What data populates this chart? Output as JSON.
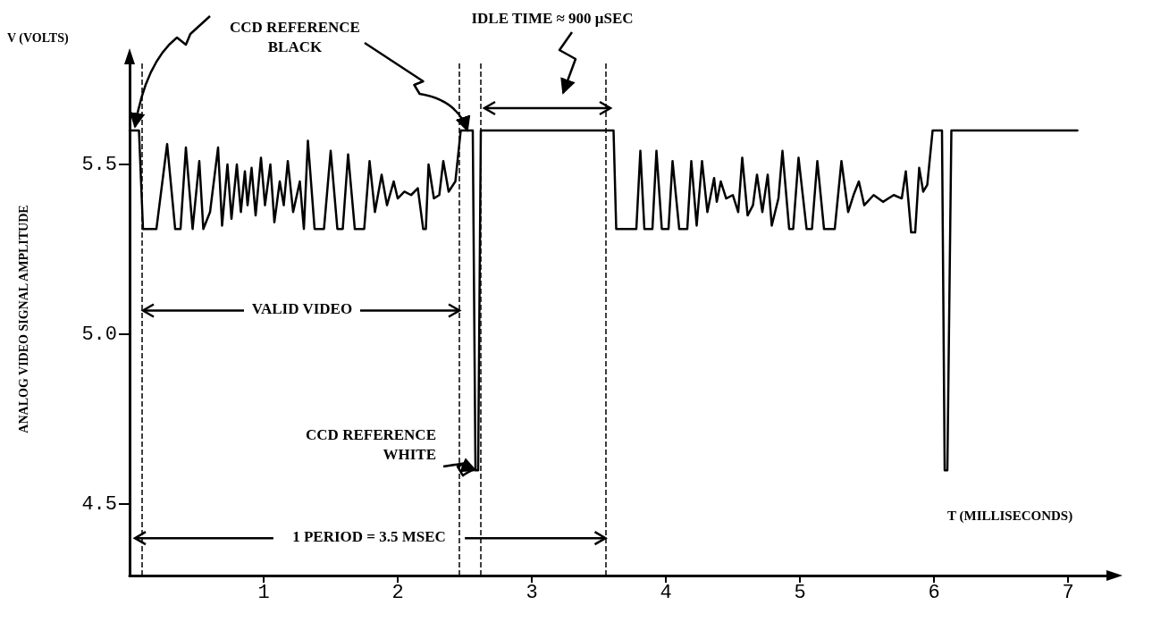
{
  "chart_data": {
    "type": "line",
    "xlabel": "T (MILLISECONDS)",
    "ylabel": "ANALOG VIDEO SIGNAL AMPLITUDE",
    "xlim": [
      0,
      7.3
    ],
    "xticks": [
      1,
      2,
      3,
      4,
      5,
      6,
      7
    ],
    "ylim": [
      4.29,
      5.8
    ],
    "yticks": [
      4.5,
      {
        "value": 5,
        "label": "5.0"
      },
      5.5
    ],
    "grid": false,
    "marker": "none",
    "line_style": "solid",
    "series": [
      {
        "color": "#000000",
        "x": [
          0,
          0.07,
          0.1,
          0.2,
          0.28,
          0.34,
          0.38,
          0.42,
          0.47,
          0.52,
          0.55,
          0.6,
          0.66,
          0.69,
          0.73,
          0.76,
          0.8,
          0.83,
          0.86,
          0.88,
          0.91,
          0.94,
          0.98,
          1.01,
          1.05,
          1.08,
          1.12,
          1.15,
          1.18,
          1.22,
          1.27,
          1.3,
          1.33,
          1.38,
          1.45,
          1.5,
          1.55,
          1.59,
          1.63,
          1.68,
          1.75,
          1.79,
          1.83,
          1.88,
          1.92,
          1.97,
          2.0,
          2.05,
          2.1,
          2.15,
          2.19,
          2.21,
          2.23,
          2.27,
          2.31,
          2.34,
          2.38,
          2.43,
          2.47,
          2.56,
          2.58,
          2.6,
          2.62,
          3.61,
          3.63,
          3.78,
          3.81,
          3.84,
          3.9,
          3.93,
          3.97,
          4.02,
          4.05,
          4.1,
          4.16,
          4.19,
          4.23,
          4.27,
          4.31,
          4.36,
          4.38,
          4.41,
          4.45,
          4.5,
          4.54,
          4.57,
          4.61,
          4.65,
          4.68,
          4.72,
          4.76,
          4.79,
          4.84,
          4.87,
          4.92,
          4.95,
          4.99,
          5.05,
          5.09,
          5.13,
          5.18,
          5.26,
          5.31,
          5.36,
          5.4,
          5.44,
          5.48,
          5.55,
          5.62,
          5.7,
          5.76,
          5.79,
          5.83,
          5.86,
          5.89,
          5.92,
          5.95,
          5.99,
          6.06,
          6.08,
          6.1,
          6.13,
          7.07
        ],
        "values": [
          5.6,
          5.6,
          5.31,
          5.31,
          5.56,
          5.31,
          5.31,
          5.55,
          5.31,
          5.51,
          5.31,
          5.36,
          5.55,
          5.32,
          5.5,
          5.34,
          5.5,
          5.36,
          5.48,
          5.38,
          5.49,
          5.35,
          5.52,
          5.38,
          5.5,
          5.33,
          5.45,
          5.38,
          5.51,
          5.36,
          5.45,
          5.31,
          5.57,
          5.31,
          5.31,
          5.54,
          5.31,
          5.31,
          5.53,
          5.31,
          5.31,
          5.51,
          5.36,
          5.47,
          5.38,
          5.45,
          5.4,
          5.42,
          5.41,
          5.43,
          5.31,
          5.31,
          5.5,
          5.4,
          5.41,
          5.51,
          5.42,
          5.45,
          5.6,
          5.6,
          4.6,
          4.6,
          5.6,
          5.6,
          5.31,
          5.31,
          5.54,
          5.31,
          5.31,
          5.54,
          5.31,
          5.31,
          5.51,
          5.31,
          5.31,
          5.51,
          5.32,
          5.51,
          5.36,
          5.46,
          5.39,
          5.45,
          5.4,
          5.41,
          5.36,
          5.52,
          5.35,
          5.38,
          5.47,
          5.36,
          5.47,
          5.32,
          5.4,
          5.54,
          5.31,
          5.31,
          5.52,
          5.31,
          5.31,
          5.51,
          5.31,
          5.31,
          5.51,
          5.36,
          5.41,
          5.45,
          5.38,
          5.41,
          5.39,
          5.41,
          5.4,
          5.48,
          5.3,
          5.3,
          5.49,
          5.42,
          5.44,
          5.6,
          5.6,
          4.6,
          4.6,
          5.6,
          5.6
        ]
      }
    ],
    "ref_lines": [
      {
        "axis": "x",
        "value": 0.09,
        "line_style": "dashed",
        "color": "#000000"
      },
      {
        "axis": "x",
        "value": 2.46,
        "line_style": "dashed",
        "color": "#000000"
      },
      {
        "axis": "x",
        "value": 2.62,
        "line_style": "dashed",
        "color": "#000000"
      },
      {
        "axis": "x",
        "value": 3.55,
        "line_style": "dashed",
        "color": "#000000"
      }
    ],
    "annotations": [
      "V (VOLTS)",
      {
        "text": "CCD REFERENCE\nBLACK",
        "x": 2.52,
        "y": 5.6
      },
      "IDLE TIME ≈ 900 μSEC",
      {
        "text": "VALID VIDEO",
        "x": 2.46,
        "y": 5.07
      },
      {
        "text": "CCD REFERENCE\nWHITE",
        "x": 2.58,
        "y": 4.6
      },
      {
        "text": "1 PERIOD = 3.5 MSEC",
        "x": 3.55,
        "y": 4.4
      }
    ]
  }
}
